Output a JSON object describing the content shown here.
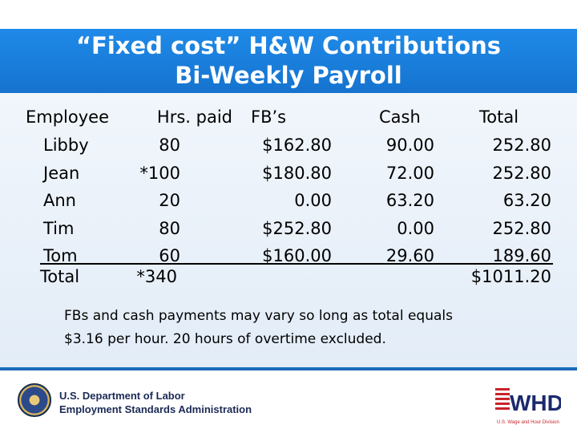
{
  "slide": {
    "title_line1": "“Fixed cost” H&W Contributions",
    "title_line2": "Bi-Weekly Payroll"
  },
  "table": {
    "headers": [
      "Employee",
      "Hrs. paid",
      "FB’s",
      "Cash",
      "Total"
    ],
    "rows": [
      [
        "Libby",
        "80",
        "$162.80",
        "90.00",
        "252.80"
      ],
      [
        "Jean",
        "*100",
        "$180.80",
        "72.00",
        "252.80"
      ],
      [
        "Ann",
        "20",
        "0.00",
        "63.20",
        "63.20"
      ],
      [
        "Tim",
        "80",
        "$252.80",
        "0.00",
        "252.80"
      ],
      [
        "Tom",
        "60",
        "$160.00",
        "29.60",
        "189.60"
      ]
    ],
    "total_row": [
      "Total",
      "*340",
      "",
      "",
      "$1011.20"
    ]
  },
  "note": {
    "line1": "FBs and cash payments may vary so long as total equals",
    "line2": "$3.16 per hour.  20 hours of overtime excluded."
  },
  "footer": {
    "dept_line1": "U.S. Department of Labor",
    "dept_line2": "Employment Standards Administration",
    "logo_text": "WHD",
    "logo_caption": "U.S. Wage and Hour Division",
    "logo_icon": "flag-stripes-icon",
    "seal_icon": "dol-seal-icon",
    "accent_color": "#1573cf",
    "logo_red": "#c8242b",
    "logo_navy": "#1b2a6b"
  }
}
